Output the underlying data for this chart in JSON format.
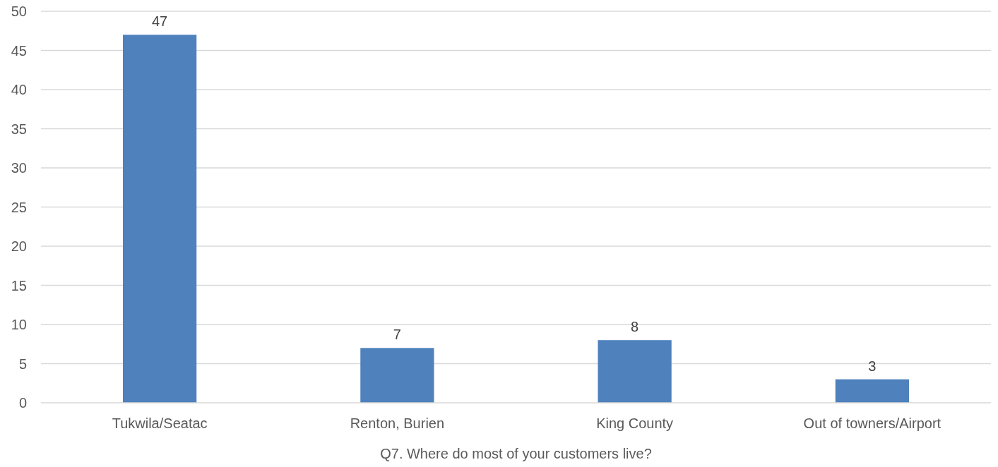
{
  "chart_data": {
    "type": "bar",
    "xlabel": "Q7. Where do most of your customers live?",
    "categories": [
      "Tukwila/Seatac",
      "Renton, Burien",
      "King County",
      "Out of towners/Airport"
    ],
    "values": [
      47,
      7,
      8,
      3
    ],
    "color": "#4f81bd",
    "ylim": [
      0,
      50
    ],
    "yticks": [
      0,
      5,
      10,
      15,
      20,
      25,
      30,
      35,
      40,
      45,
      50
    ],
    "grid": "y",
    "data_labels": true
  }
}
